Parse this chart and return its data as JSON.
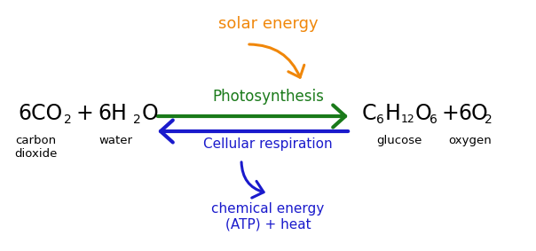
{
  "bg_color": "#ffffff",
  "solar_energy_text": "solar energy",
  "solar_energy_color": "#f0870a",
  "photosynthesis_text": "Photosynthesis",
  "photosynthesis_color": "#1a7a1a",
  "cellular_respiration_text": "Cellular respiration",
  "cellular_respiration_color": "#1a1acc",
  "chemical_energy_text": "chemical energy\n(ATP) + heat",
  "chemical_energy_color": "#1a1acc",
  "label_carbon": "carbon\ndioxide",
  "label_water": "water",
  "label_glucose": "glucose",
  "label_oxygen": "oxygen",
  "arrow_color_green": "#1a7a1a",
  "arrow_color_blue": "#1a1acc",
  "arrow_color_orange": "#f0870a",
  "figsize": [
    6.04,
    2.83
  ],
  "dpi": 100
}
